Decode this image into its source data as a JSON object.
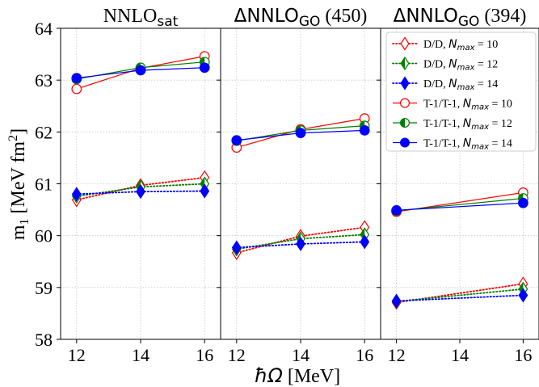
{
  "figure": {
    "ylabel_main": "m",
    "ylabel_sub": "1",
    "ylabel_unit": " [MeV fm",
    "ylabel_sup": "2",
    "ylabel_end": "]",
    "xlabel_symbol": "ħΩ",
    "xlabel_unit": " [MeV]"
  },
  "legend": {
    "placement": "top-right",
    "entries": [
      {
        "id": "dd10",
        "method": "D/D, ",
        "nmax": "N",
        "nmax_sub": "max",
        "eq": " = 10",
        "color": "#ff0000",
        "marker": "diamond",
        "fill": "none",
        "dash": "dot"
      },
      {
        "id": "dd12",
        "method": "D/D, ",
        "nmax": "N",
        "nmax_sub": "max",
        "eq": " = 12",
        "color": "#008000",
        "marker": "diamond",
        "fill": "half",
        "dash": "dot"
      },
      {
        "id": "dd14",
        "method": "D/D, ",
        "nmax": "N",
        "nmax_sub": "max",
        "eq": " = 14",
        "color": "#0000ff",
        "marker": "diamond",
        "fill": "full",
        "dash": "dot"
      },
      {
        "id": "tt10",
        "method": "T-1/T-1, ",
        "nmax": "N",
        "nmax_sub": "max",
        "eq": " = 10",
        "color": "#ff0000",
        "marker": "circle",
        "fill": "none",
        "dash": "solid"
      },
      {
        "id": "tt12",
        "method": "T-1/T-1, ",
        "nmax": "N",
        "nmax_sub": "max",
        "eq": " = 12",
        "color": "#008000",
        "marker": "circle",
        "fill": "half",
        "dash": "solid"
      },
      {
        "id": "tt14",
        "method": "T-1/T-1, ",
        "nmax": "N",
        "nmax_sub": "max",
        "eq": " = 14",
        "color": "#0000ff",
        "marker": "circle",
        "fill": "full",
        "dash": "solid"
      }
    ]
  },
  "chart_data": [
    {
      "type": "line",
      "title_main": "NNLO",
      "title_sub": "sat",
      "title_rest": "",
      "x": [
        12,
        14,
        16
      ],
      "xticks": [
        "12",
        "14",
        "16"
      ],
      "xlim": [
        11.5,
        16.5
      ],
      "ylim": [
        58,
        64
      ],
      "yticks": [
        "58",
        "59",
        "60",
        "61",
        "62",
        "63",
        "64"
      ],
      "grid": true,
      "series": [
        {
          "ref": "dd10",
          "values": [
            60.69,
            60.97,
            61.12
          ]
        },
        {
          "ref": "dd12",
          "values": [
            60.76,
            60.94,
            61.0
          ]
        },
        {
          "ref": "dd14",
          "values": [
            60.8,
            60.85,
            60.86
          ]
        },
        {
          "ref": "tt10",
          "values": [
            62.83,
            63.23,
            63.46
          ]
        },
        {
          "ref": "tt12",
          "values": [
            63.02,
            63.24,
            63.35
          ]
        },
        {
          "ref": "tt14",
          "values": [
            63.04,
            63.19,
            63.24
          ]
        }
      ]
    },
    {
      "type": "line",
      "title_main": "ΔNNLO",
      "title_sub": "GO",
      "title_rest": " (450)",
      "x": [
        12,
        14,
        16
      ],
      "xticks": [
        "12",
        "14",
        "16"
      ],
      "xlim": [
        11.5,
        16.5
      ],
      "ylim": [
        58,
        64
      ],
      "grid": true,
      "series": [
        {
          "ref": "dd10",
          "values": [
            59.67,
            59.99,
            60.16
          ]
        },
        {
          "ref": "dd12",
          "values": [
            59.74,
            59.94,
            60.02
          ]
        },
        {
          "ref": "dd14",
          "values": [
            59.77,
            59.84,
            59.88
          ]
        },
        {
          "ref": "tt10",
          "values": [
            61.7,
            62.05,
            62.26
          ]
        },
        {
          "ref": "tt12",
          "values": [
            61.83,
            62.03,
            62.12
          ]
        },
        {
          "ref": "tt14",
          "values": [
            61.84,
            61.98,
            62.03
          ]
        }
      ]
    },
    {
      "type": "line",
      "title_main": "ΔNNLO",
      "title_sub": "GO",
      "title_rest": " (394)",
      "x": [
        12,
        16
      ],
      "xticks": [
        "12",
        "14",
        "16"
      ],
      "xlim": [
        11.5,
        16.5
      ],
      "ylim": [
        58,
        64
      ],
      "grid": true,
      "series": [
        {
          "ref": "dd10",
          "values": [
            58.71,
            59.07
          ]
        },
        {
          "ref": "dd12",
          "values": [
            58.73,
            58.97
          ]
        },
        {
          "ref": "dd14",
          "values": [
            58.74,
            58.85
          ]
        },
        {
          "ref": "tt10",
          "values": [
            60.46,
            60.83
          ]
        },
        {
          "ref": "tt12",
          "values": [
            60.48,
            60.72
          ]
        },
        {
          "ref": "tt14",
          "values": [
            60.49,
            60.63
          ]
        }
      ]
    }
  ]
}
